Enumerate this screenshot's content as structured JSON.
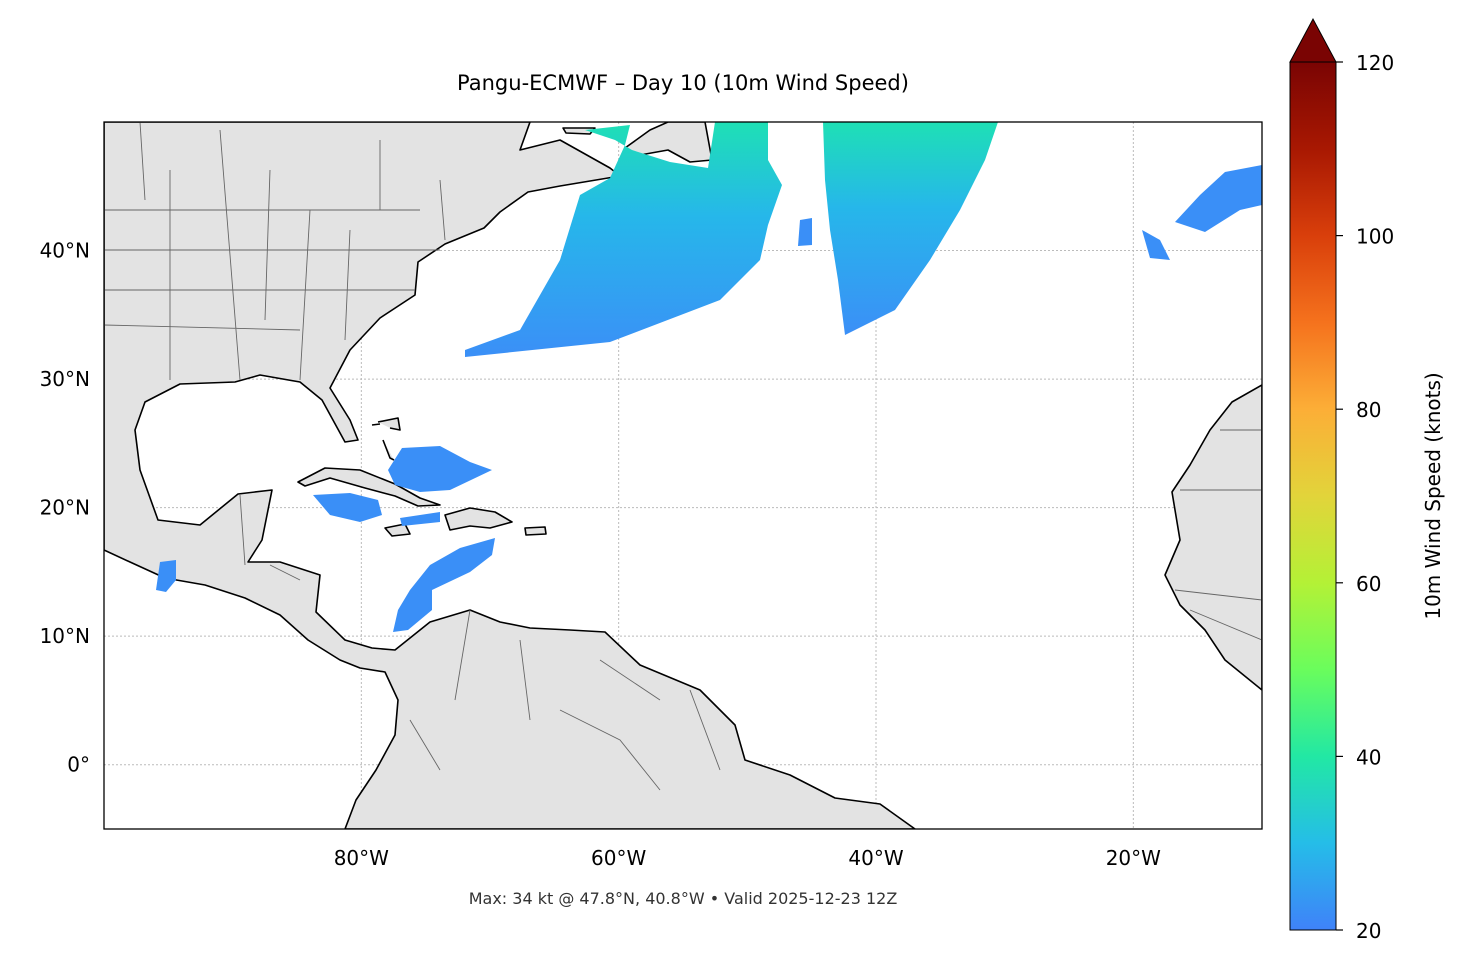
{
  "map": {
    "title": "Pangu-ECMWF – Day 10 (10m Wind Speed)",
    "xlim": [
      -100,
      -10
    ],
    "ylim": [
      -5,
      50
    ],
    "xticks": [
      {
        "value": -80,
        "label": "80°W"
      },
      {
        "value": -60,
        "label": "60°W"
      },
      {
        "value": -40,
        "label": "40°W"
      },
      {
        "value": -20,
        "label": "20°W"
      }
    ],
    "yticks": [
      {
        "value": 0,
        "label": "0°"
      },
      {
        "value": 10,
        "label": "10°N"
      },
      {
        "value": 20,
        "label": "20°N"
      },
      {
        "value": 30,
        "label": "30°N"
      },
      {
        "value": 40,
        "label": "40°N"
      }
    ],
    "grid": true,
    "colorbar": {
      "label": "10m Wind Speed (knots)",
      "lim": [
        20,
        120
      ],
      "ticks": [
        20,
        40,
        60,
        80,
        100,
        120
      ]
    },
    "footer": "Max: 34 kt @ 47.8°N, 40.8°W • Valid 2025-12-23 12Z"
  }
}
